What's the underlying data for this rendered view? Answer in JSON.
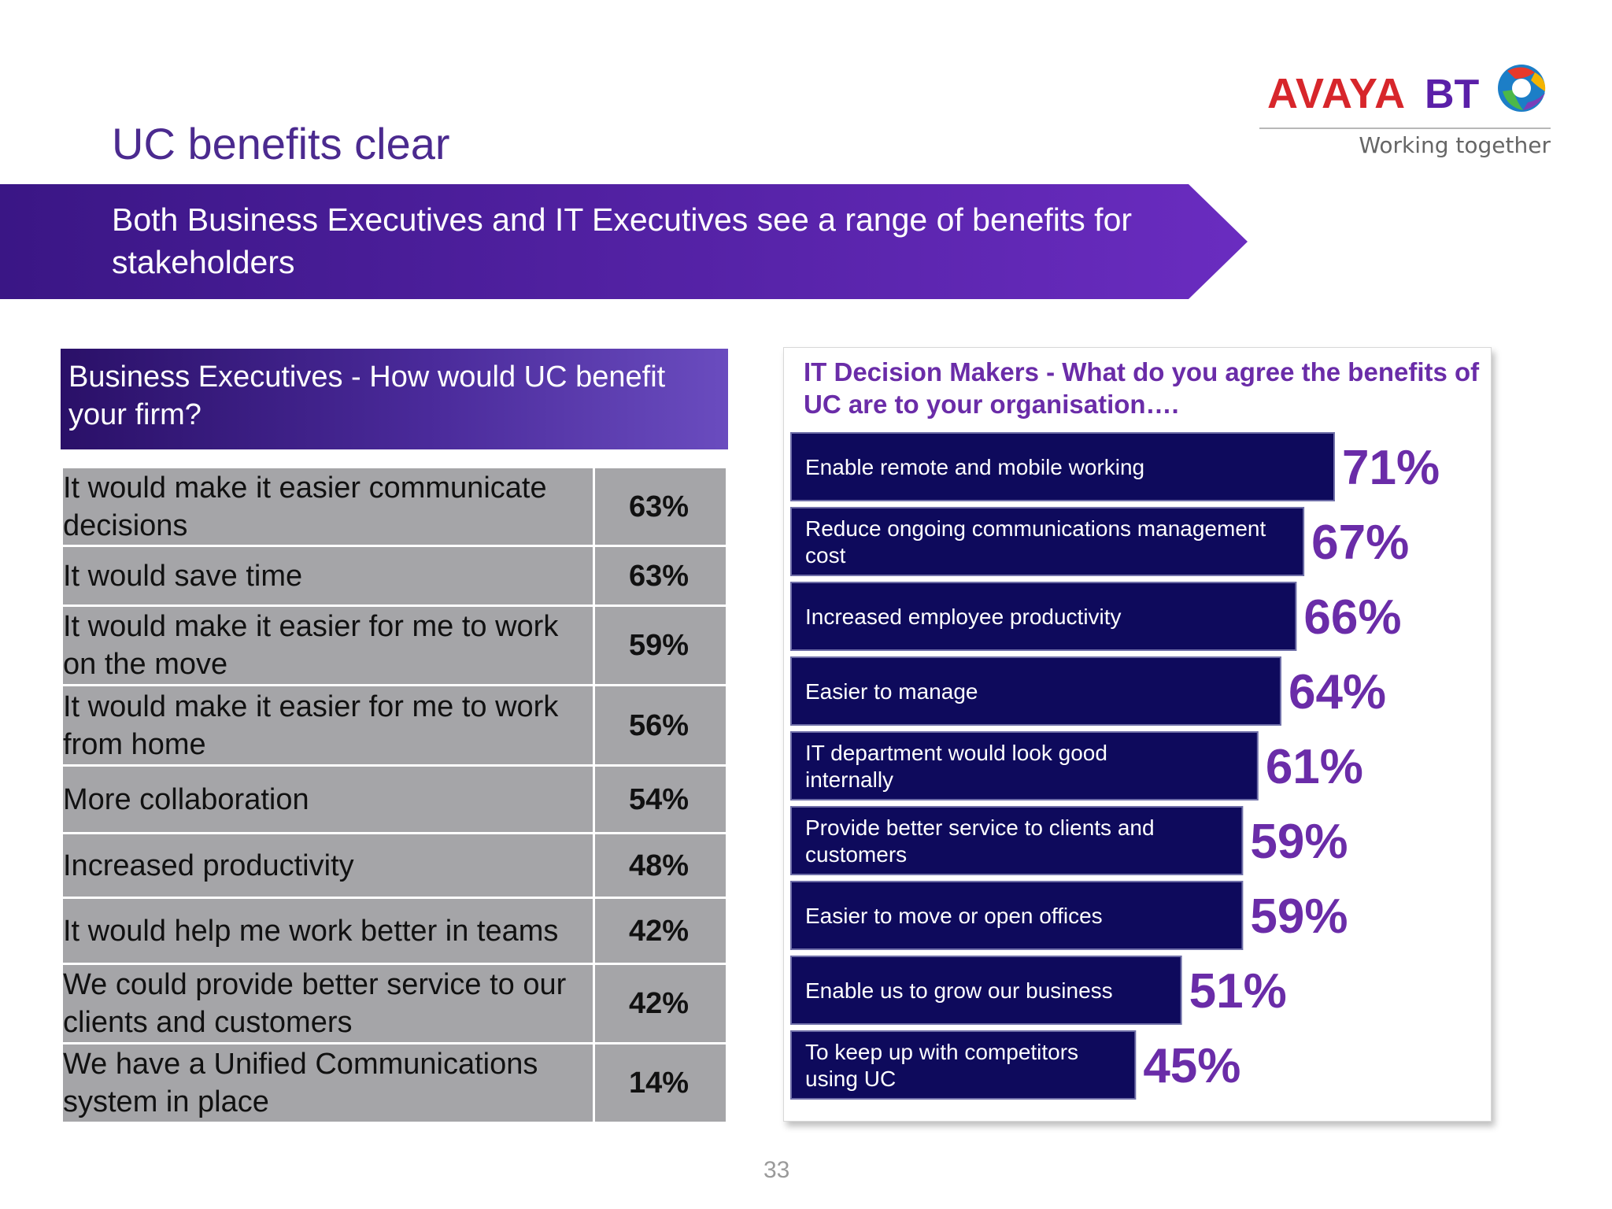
{
  "slide": {
    "title": "UC benefits clear",
    "banner": "Both Business Executives and IT Executives see a range of benefits for stakeholders",
    "page_number": "33"
  },
  "logo": {
    "brand1": "AVAYA",
    "brand2": "BT",
    "tagline": "Working together"
  },
  "colors": {
    "purple": "#4b2a8f",
    "bar": "#0e0a5c",
    "label": "#6a2ca8",
    "table_bg": "#a5a5a8"
  },
  "business_table": {
    "heading": "Business Executives - How would UC benefit your firm?",
    "rows": [
      {
        "label": "It would make it easier communicate decisions",
        "value": "63%"
      },
      {
        "label": "It would save time",
        "value": "63%"
      },
      {
        "label": "It would make it easier for me to work on the move",
        "value": "59%"
      },
      {
        "label": "It would make it easier for me to work from home",
        "value": "56%"
      },
      {
        "label": "More collaboration",
        "value": "54%"
      },
      {
        "label": "Increased productivity",
        "value": "48%"
      },
      {
        "label": "It would help me work better in teams",
        "value": "42%"
      },
      {
        "label": "We could provide better service to our clients and customers",
        "value": "42%"
      },
      {
        "label": "We have a Unified Communications system in place",
        "value": "14%"
      }
    ]
  },
  "chart_data": {
    "type": "bar",
    "orientation": "horizontal",
    "title": "IT Decision Makers - What do you agree the benefits of UC are to your organisation….",
    "categories": [
      "Enable remote and mobile working",
      "Reduce ongoing communications management cost",
      "Increased employee productivity",
      "Easier to manage",
      "IT department would look good internally",
      "Provide better service to clients and customers",
      "Easier to move or open offices",
      "Enable us to grow our business",
      "To keep up with competitors using UC"
    ],
    "values": [
      71,
      67,
      66,
      64,
      61,
      59,
      59,
      51,
      45
    ],
    "value_labels": [
      "71%",
      "67%",
      "66%",
      "64%",
      "61%",
      "59%",
      "59%",
      "51%",
      "45%"
    ],
    "xlim": [
      0,
      100
    ],
    "grid": false,
    "legend": false
  }
}
